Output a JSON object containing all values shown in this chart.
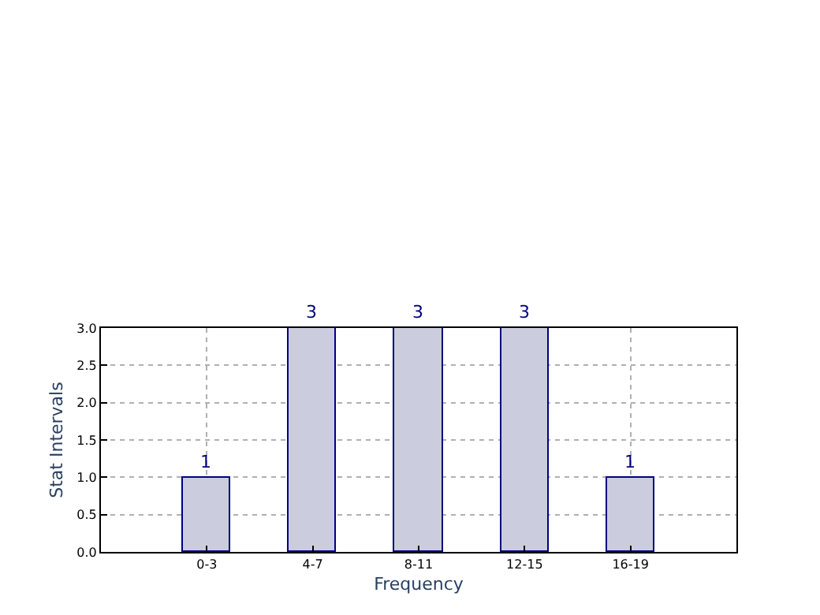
{
  "chart_data": {
    "type": "bar",
    "xlabel": "Frequency",
    "ylabel": "Stat Intervals",
    "categories": [
      "0-3",
      "4-7",
      "8-11",
      "12-15",
      "16-19"
    ],
    "values": [
      1,
      3,
      3,
      3,
      1
    ],
    "color": "#ccccdf",
    "ylim": [
      0,
      3
    ],
    "yticks": [
      {
        "value": 0,
        "label": "0.0"
      },
      {
        "value": 0.5,
        "label": "0.5"
      },
      {
        "value": 1,
        "label": "1.0"
      },
      {
        "value": 1.5,
        "label": "1.5"
      },
      {
        "value": 2,
        "label": "2.0"
      },
      {
        "value": 2.5,
        "label": "2.5"
      },
      {
        "value": 3,
        "label": "3.0"
      }
    ],
    "grid": true,
    "data_labels": true
  }
}
